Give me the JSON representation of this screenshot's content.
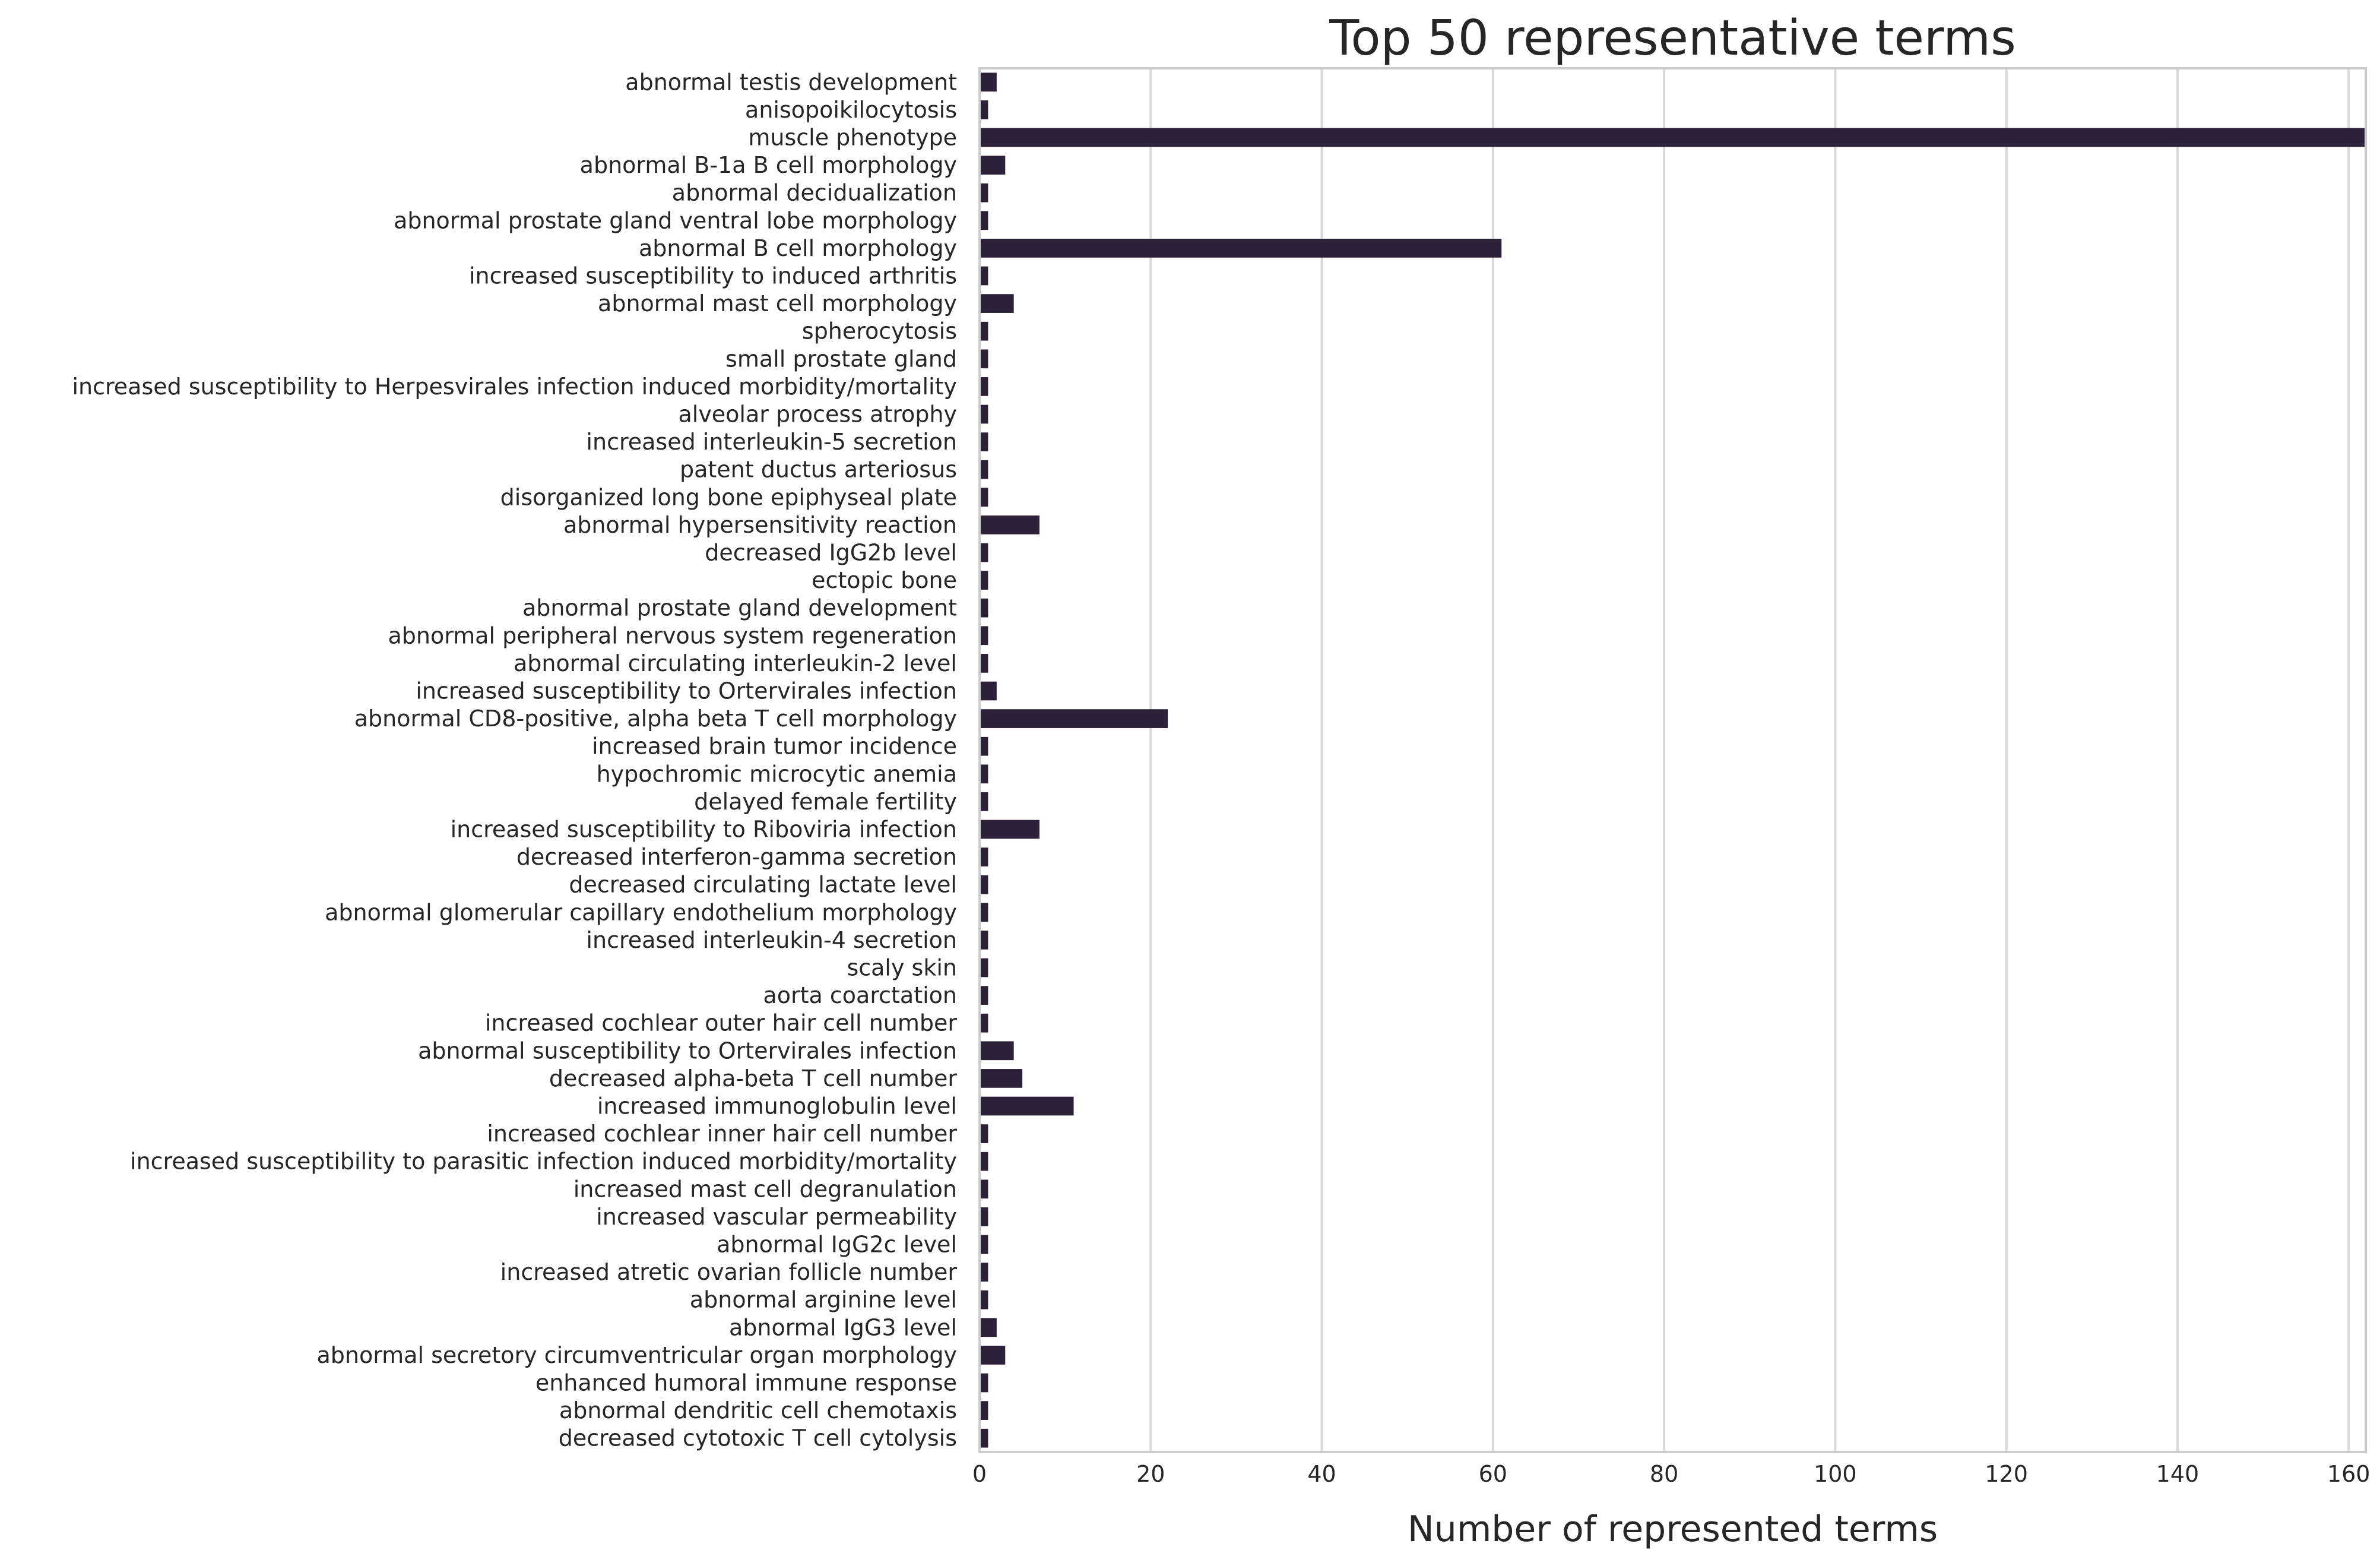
{
  "chart_data": {
    "type": "bar",
    "orientation": "horizontal",
    "title": "Top 50 representative terms",
    "xlabel": "Number of represented terms",
    "ylabel": "",
    "xlim": [
      0,
      162
    ],
    "xticks": [
      0,
      20,
      40,
      60,
      80,
      100,
      120,
      140,
      160
    ],
    "grid": true,
    "bar_color": "#2c2138",
    "categories": [
      "abnormal testis development",
      "anisopoikilocytosis",
      "muscle phenotype",
      "abnormal B-1a B cell morphology",
      "abnormal decidualization",
      "abnormal prostate gland ventral lobe morphology",
      "abnormal B cell morphology",
      "increased susceptibility to induced arthritis",
      "abnormal mast cell morphology",
      "spherocytosis",
      "small prostate gland",
      "increased susceptibility to Herpesvirales infection induced morbidity/mortality",
      "alveolar process atrophy",
      "increased interleukin-5 secretion",
      "patent ductus arteriosus",
      "disorganized long bone epiphyseal plate",
      "abnormal hypersensitivity reaction",
      "decreased IgG2b level",
      "ectopic bone",
      "abnormal prostate gland development",
      "abnormal peripheral nervous system regeneration",
      "abnormal circulating interleukin-2 level",
      "increased susceptibility to Ortervirales infection",
      "abnormal CD8-positive, alpha beta T cell morphology",
      "increased brain tumor incidence",
      "hypochromic microcytic anemia",
      "delayed female fertility",
      "increased susceptibility to Riboviria infection",
      "decreased interferon-gamma secretion",
      "decreased circulating lactate level",
      "abnormal glomerular capillary endothelium morphology",
      "increased interleukin-4 secretion",
      "scaly skin",
      "aorta coarctation",
      "increased cochlear outer hair cell number",
      "abnormal susceptibility to Ortervirales infection",
      "decreased alpha-beta T cell number",
      "increased immunoglobulin level",
      "increased cochlear inner hair cell number",
      "increased susceptibility to parasitic infection induced morbidity/mortality",
      "increased mast cell degranulation",
      "increased vascular permeability",
      "abnormal IgG2c level",
      "increased atretic ovarian follicle number",
      "abnormal arginine level",
      "abnormal IgG3 level",
      "abnormal secretory circumventricular organ morphology",
      "enhanced humoral immune response",
      "abnormal dendritic cell chemotaxis",
      "decreased cytotoxic T cell cytolysis"
    ],
    "values": [
      2,
      1,
      162,
      3,
      1,
      1,
      61,
      1,
      4,
      1,
      1,
      1,
      1,
      1,
      1,
      1,
      7,
      1,
      1,
      1,
      1,
      1,
      2,
      22,
      1,
      1,
      1,
      7,
      1,
      1,
      1,
      1,
      1,
      1,
      1,
      4,
      5,
      11,
      1,
      1,
      1,
      1,
      1,
      1,
      1,
      2,
      3,
      1,
      1,
      1
    ]
  }
}
